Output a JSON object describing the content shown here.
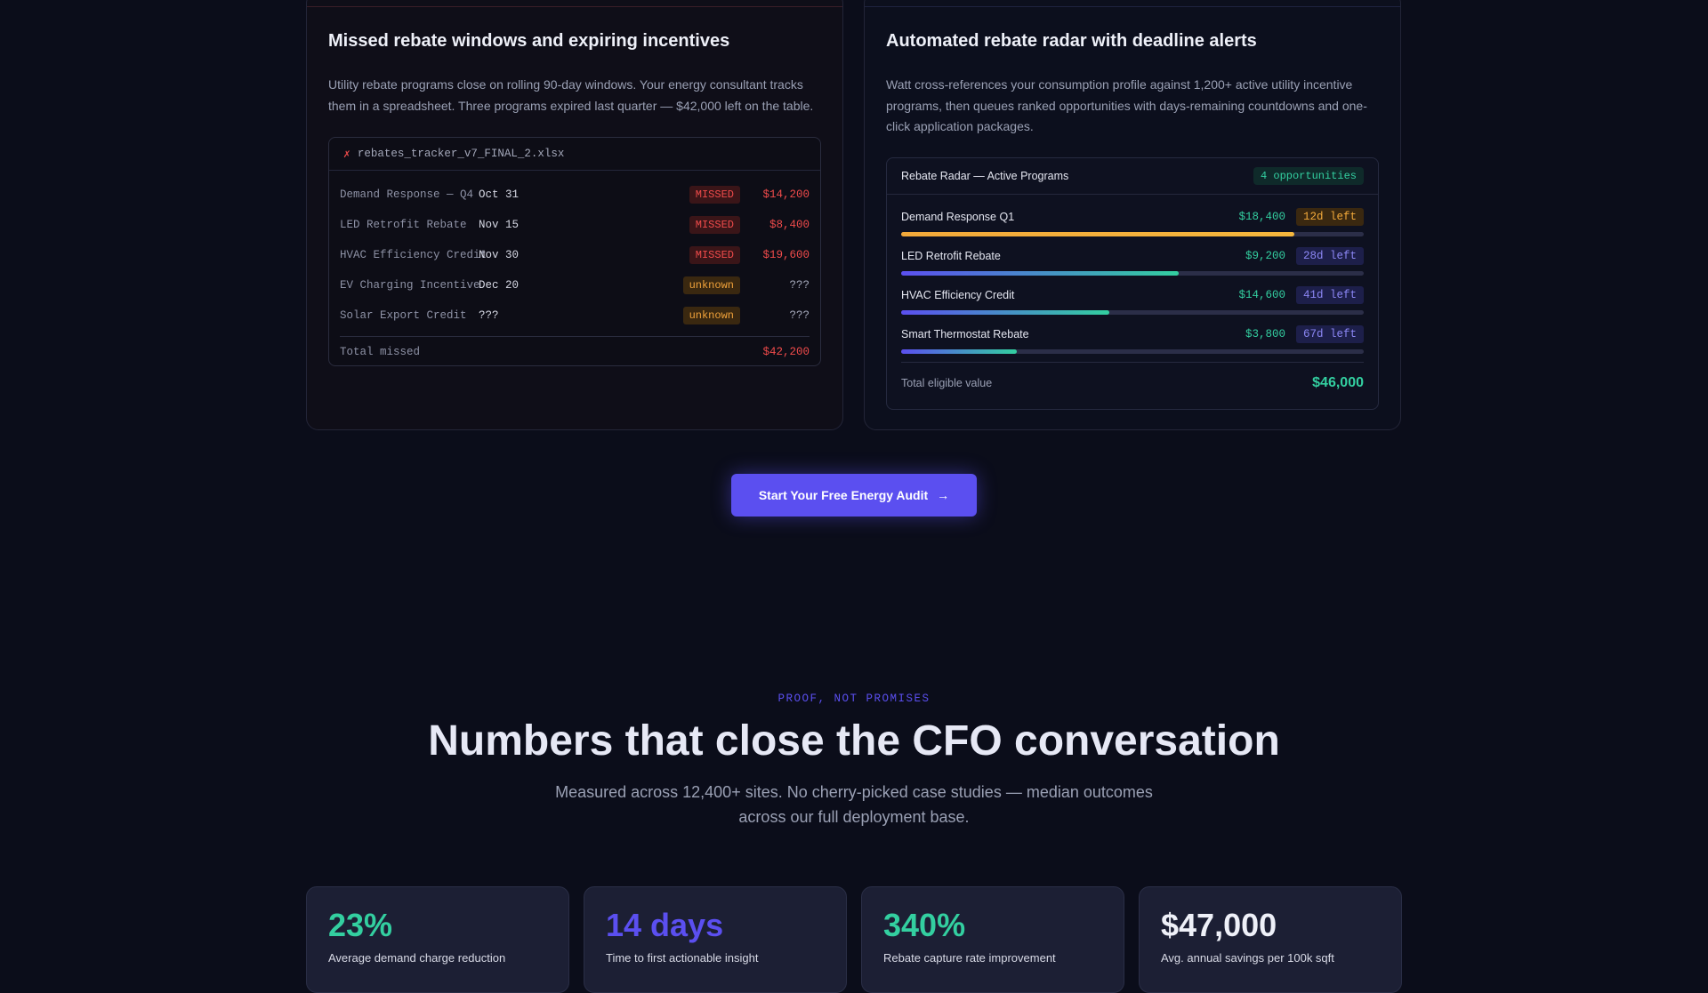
{
  "colors": {
    "background": "#0b0d1a",
    "accent": "#5b4ff0",
    "teal": "#33cfa0",
    "red": "#f04b4b",
    "orange": "#f2a93a"
  },
  "problem": {
    "title": "Missed rebate windows and expiring incentives",
    "description": "Utility rebate programs close on rolling 90-day windows. Your energy consultant tracks them in a spreadsheet. Three programs expired last quarter — $42,000 left on the table.",
    "sheet": {
      "icon": "x-icon",
      "icon_glyph": "✗",
      "filename": "rebates_tracker_v7_FINAL_2.xlsx",
      "rows": [
        {
          "name": "Demand Response — Q4",
          "date": "Oct 31",
          "status": "MISSED",
          "status_type": "missed",
          "amount": "$14,200"
        },
        {
          "name": "LED Retrofit Rebate",
          "date": "Nov 15",
          "status": "MISSED",
          "status_type": "missed",
          "amount": "$8,400"
        },
        {
          "name": "HVAC Efficiency Credit",
          "date": "Nov 30",
          "status": "MISSED",
          "status_type": "missed",
          "amount": "$19,600"
        },
        {
          "name": "EV Charging Incentive",
          "date": "Dec 20",
          "status": "unknown",
          "status_type": "unknown",
          "amount": "???"
        },
        {
          "name": "Solar Export Credit",
          "date": "???",
          "status": "unknown",
          "status_type": "unknown",
          "amount": "???"
        }
      ],
      "total_label": "Total missed",
      "total_value": "$42,200"
    }
  },
  "solution": {
    "title": "Automated rebate radar with deadline alerts",
    "description": "Watt cross-references your consumption profile against 1,200+ active utility incentive programs, then queues ranked opportunities with days-remaining countdowns and one-click application packages.",
    "radar": {
      "title": "Rebate Radar — Active Programs",
      "count_label": "4 opportunities",
      "items": [
        {
          "name": "Demand Response Q1",
          "value": "$18,400",
          "days": "12d left",
          "tone": "orange",
          "progress": 0.85,
          "bar": "orange"
        },
        {
          "name": "LED Retrofit Rebate",
          "value": "$9,200",
          "days": "28d left",
          "tone": "indigo",
          "progress": 0.6,
          "bar": "indigo-teal"
        },
        {
          "name": "HVAC Efficiency Credit",
          "value": "$14,600",
          "days": "41d left",
          "tone": "indigo",
          "progress": 0.45,
          "bar": "indigo-teal"
        },
        {
          "name": "Smart Thermostat Rebate",
          "value": "$3,800",
          "days": "67d left",
          "tone": "indigo",
          "progress": 0.25,
          "bar": "indigo-teal"
        }
      ],
      "total_label": "Total eligible value",
      "total_value": "$46,000"
    }
  },
  "cta": {
    "label": "Start Your Free Energy Audit",
    "icon": "arrow-right-icon",
    "glyph": "→"
  },
  "proof": {
    "eyebrow": "PROOF, NOT PROMISES",
    "headline": "Numbers that close the CFO conversation",
    "subhead": "Measured across 12,400+ sites. No cherry-picked case studies — median outcomes across our full deployment base.",
    "stats": [
      {
        "value": "23%",
        "caption": "Average demand charge reduction",
        "color": "#33cfa0"
      },
      {
        "value": "14 days",
        "caption": "Time to first actionable insight",
        "color": "#5b4ff0"
      },
      {
        "value": "340%",
        "caption": "Rebate capture rate improvement",
        "color": "#33cfa0"
      },
      {
        "value": "$47,000",
        "caption": "Avg. annual savings per 100k sqft",
        "color": "#eef0f8"
      }
    ]
  }
}
